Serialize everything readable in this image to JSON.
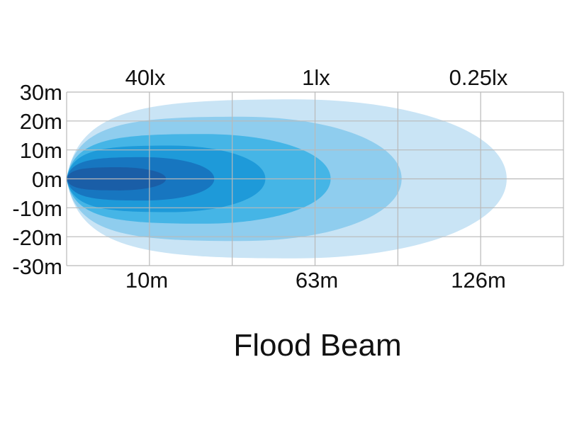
{
  "chart_data": {
    "type": "area",
    "title": "Flood Beam",
    "y_ticks": [
      "30m",
      "20m",
      "10m",
      "0m",
      "-10m",
      "-20m",
      "-30m"
    ],
    "y_range": [
      -30,
      30
    ],
    "x_range_m": [
      0,
      175
    ],
    "lux_labels": [
      "40lx",
      "1lx",
      "0.25lx"
    ],
    "distance_labels": [
      "10m",
      "63m",
      "126m"
    ],
    "grid": true,
    "series": [
      {
        "reach_m": 155,
        "half_width_m": 27.5,
        "color": "#c9e4f5"
      },
      {
        "reach_m": 118,
        "half_width_m": 21.5,
        "color": "#8fcdee"
      },
      {
        "reach_m": 93,
        "half_width_m": 15.5,
        "color": "#45b5e6"
      },
      {
        "reach_m": 70,
        "half_width_m": 11.5,
        "color": "#1e9ad9"
      },
      {
        "reach_m": 52,
        "half_width_m": 7.5,
        "color": "#1776c0"
      },
      {
        "reach_m": 35,
        "half_width_m": 4.0,
        "color": "#1a5ea7"
      }
    ]
  }
}
